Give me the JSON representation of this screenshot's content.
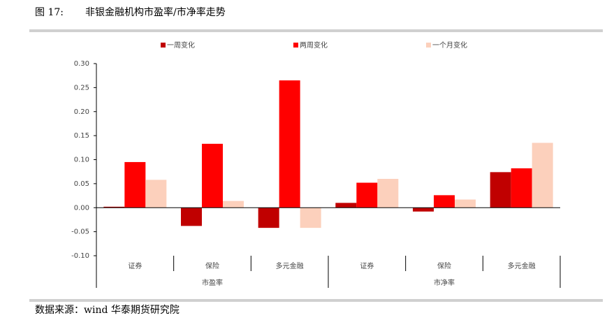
{
  "chart_data": {
    "type": "bar",
    "figure_label": "图 17:",
    "title": "非银金融机构市盈率/市净率走势",
    "categories": [
      "证券",
      "保险",
      "多元金融",
      "证券",
      "保险",
      "多元金融"
    ],
    "category_groups": [
      "市盈率",
      "市净率"
    ],
    "series": [
      {
        "name": "一周变化",
        "color": "#c00000",
        "values": [
          0.002,
          -0.038,
          -0.042,
          0.01,
          -0.008,
          0.074
        ]
      },
      {
        "name": "两周变化",
        "color": "#ff0000",
        "values": [
          0.095,
          0.133,
          0.265,
          0.052,
          0.026,
          0.082
        ]
      },
      {
        "name": "一个月变化",
        "color": "#fcd0bc",
        "values": [
          0.058,
          0.014,
          -0.042,
          0.06,
          0.017,
          0.135
        ]
      }
    ],
    "ylim": [
      -0.1,
      0.3
    ],
    "yticks": [
      {
        "value": -0.1,
        "label": "-0.10"
      },
      {
        "value": -0.05,
        "label": "-0.05"
      },
      {
        "value": 0,
        "label": "0.00"
      },
      {
        "value": 0.05,
        "label": "0.05"
      },
      {
        "value": 0.1,
        "label": "0.10"
      },
      {
        "value": 0.15,
        "label": "0.15"
      },
      {
        "value": 0.2,
        "label": "0.20"
      },
      {
        "value": 0.25,
        "label": "0.25"
      },
      {
        "value": 0.3,
        "label": "0.30"
      }
    ],
    "legend": "top",
    "source": "数据来源：wind 华泰期货研究院"
  }
}
